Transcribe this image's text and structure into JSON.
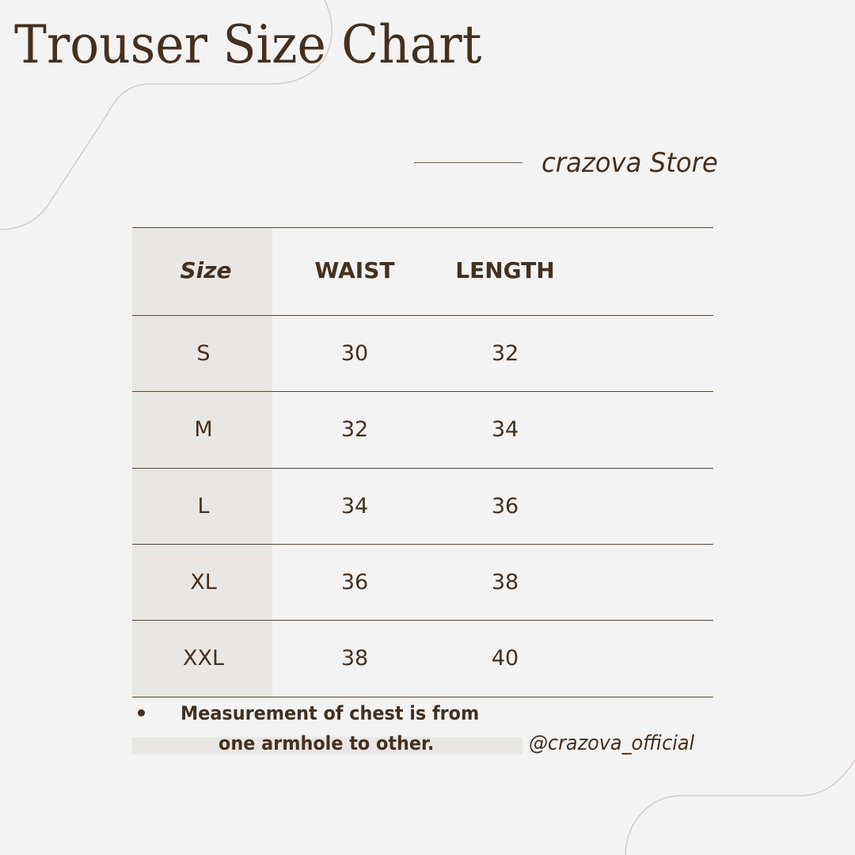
{
  "title": "Trouser Size Chart",
  "brand": "crazova Store",
  "table": {
    "headers": [
      "Size",
      "WAIST",
      "LENGTH"
    ],
    "rows": [
      [
        "S",
        "30",
        "32"
      ],
      [
        "M",
        "32",
        "34"
      ],
      [
        "L",
        "34",
        "36"
      ],
      [
        "XL",
        "36",
        "38"
      ],
      [
        "XXL",
        "38",
        "40"
      ]
    ]
  },
  "note": {
    "line1": "Measurement of chest is from",
    "line2": "one armhole to other."
  },
  "handle": "@crazova_official",
  "colors": {
    "text": "#45301f",
    "background": "#f3f3f3",
    "shade": "#e8e7e3",
    "decor": "#d6ccc6"
  }
}
